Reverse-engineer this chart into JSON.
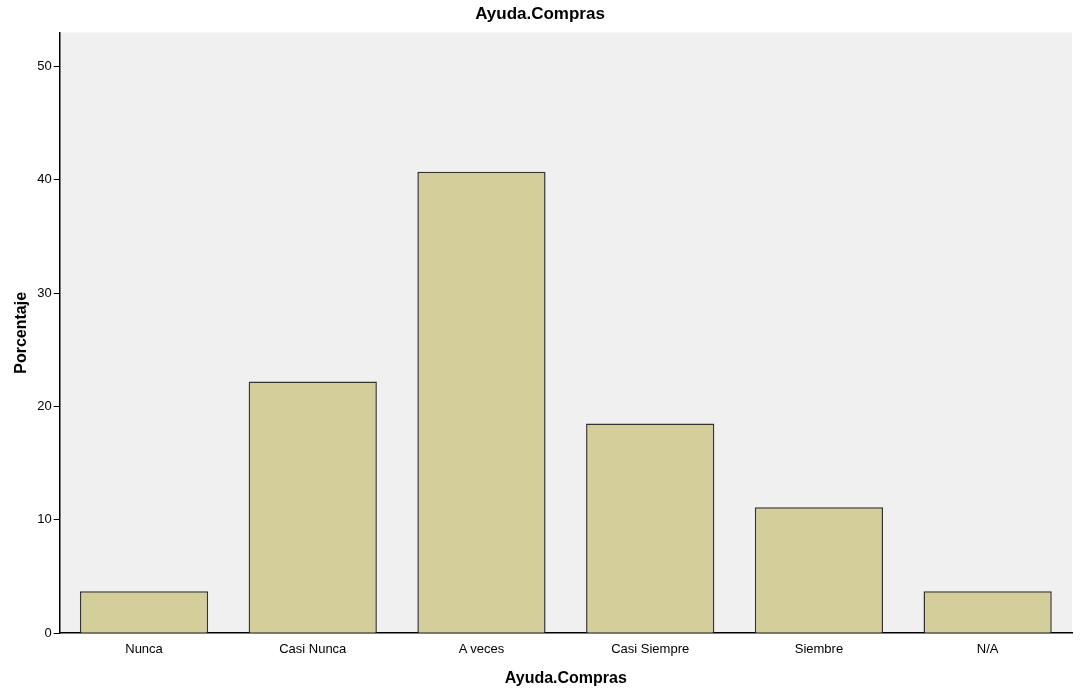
{
  "chart_data": {
    "type": "bar",
    "title": "Ayuda.Compras",
    "xlabel": "Ayuda.Compras",
    "ylabel": "Porcentaje",
    "categories": [
      "Nunca",
      "Casi Nunca",
      "A veces",
      "Casi Siempre",
      "Siembre",
      "N/A"
    ],
    "values": [
      3.7,
      22.2,
      40.7,
      18.5,
      11.1,
      3.7
    ],
    "color": "#d3ce9a",
    "ylim": [
      0,
      53
    ],
    "yticks": [
      0,
      10,
      20,
      30,
      40,
      50
    ],
    "grid": false,
    "legend": false
  }
}
